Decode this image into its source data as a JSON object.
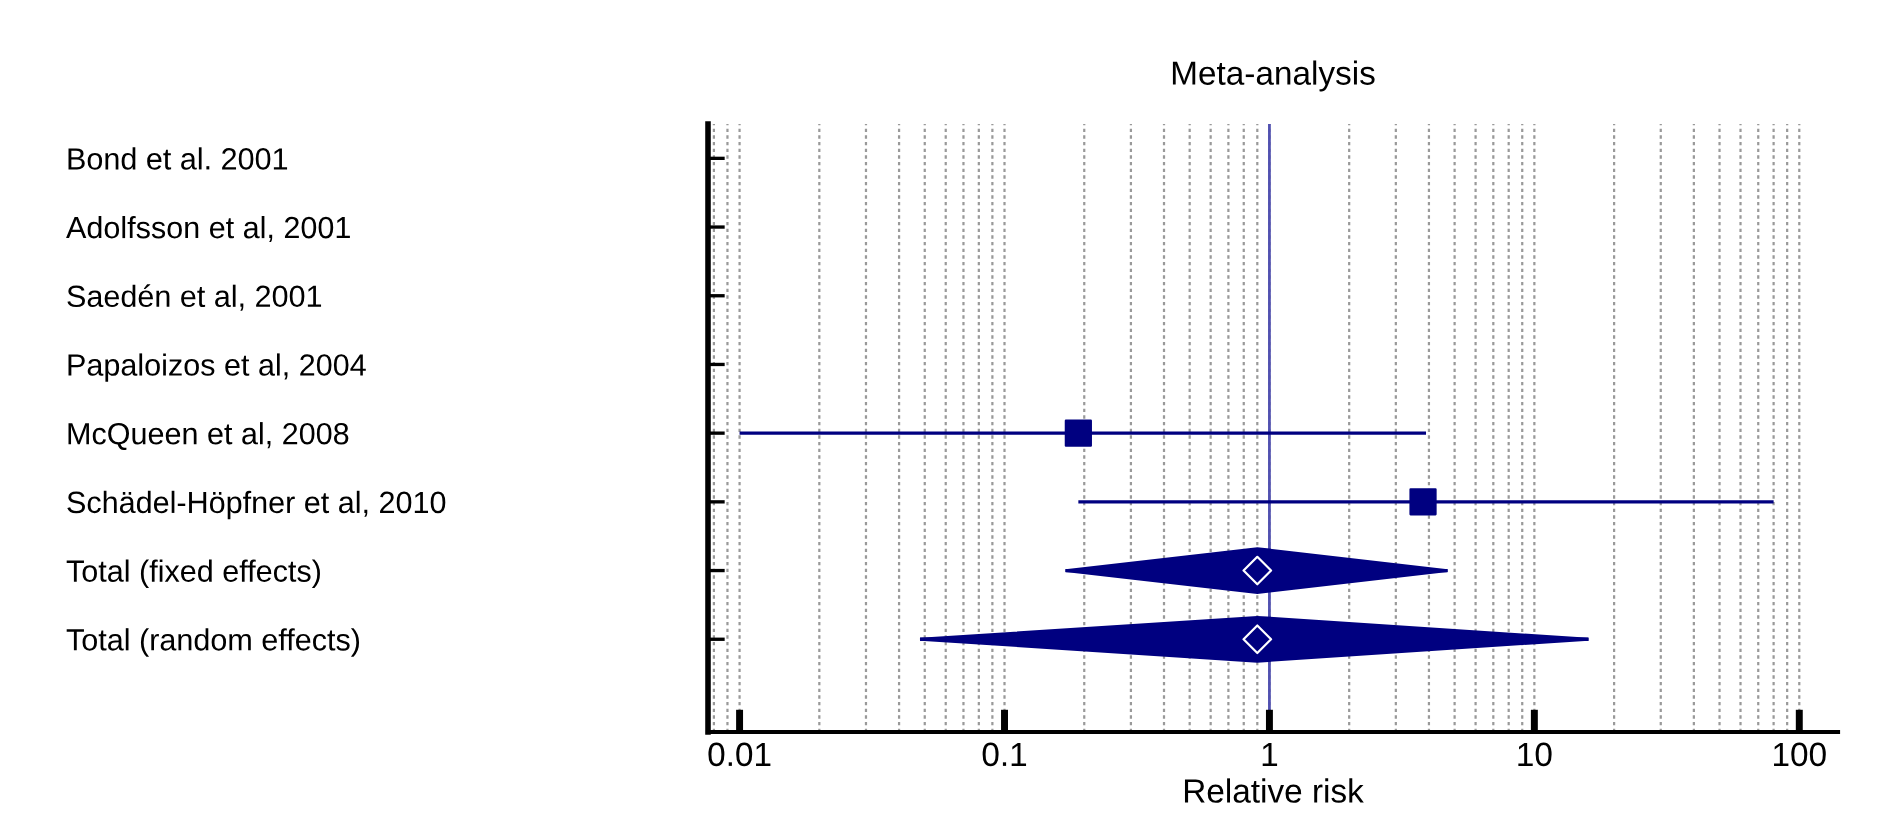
{
  "chart_data": {
    "type": "scatter",
    "orientation": "horizontal",
    "title": "Meta-analysis",
    "xlabel": "Relative risk",
    "categories": [
      "Bond et al. 2001",
      "Adolfsson et al, 2001",
      "Saedén et al, 2001",
      "Papaloizos et al, 2004",
      "McQueen et al, 2008",
      "Schädel-Höpfner et al, 2010",
      "Total (fixed effects)",
      "Total (random effects)"
    ],
    "series": [
      {
        "color": "#000080",
        "marker": "square",
        "values": [
          null,
          null,
          null,
          null,
          0.19,
          3.8,
          null,
          null
        ],
        "errors": [
          null,
          null,
          null,
          null,
          [
            0.01,
            3.9
          ],
          [
            0.19,
            80
          ],
          null,
          null
        ]
      },
      {
        "color": "#000080",
        "marker": "diamond",
        "values": [
          null,
          null,
          null,
          null,
          null,
          null,
          0.9,
          0.9
        ],
        "errors": [
          null,
          null,
          null,
          null,
          null,
          null,
          [
            0.17,
            4.7
          ],
          [
            0.048,
            16
          ]
        ]
      }
    ],
    "log": "x",
    "xlim": [
      0.0076,
      140
    ],
    "xticks": [
      0.01,
      0.1,
      1,
      10,
      100
    ],
    "grid": "x",
    "ref_lines": [
      {
        "axis": "x",
        "value": 1,
        "color": "#5050b0"
      }
    ]
  }
}
